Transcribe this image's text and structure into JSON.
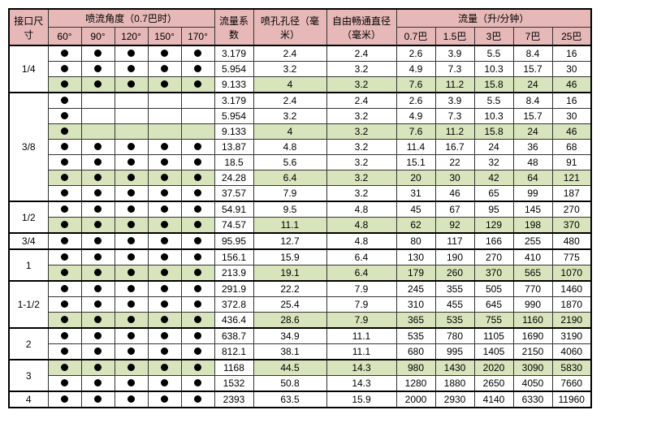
{
  "colors": {
    "header_bg": "#e6b8b7",
    "highlight_bg": "#d8e4bc",
    "border": "#333333",
    "dot": "#000000",
    "page_bg": "#ffffff"
  },
  "font": {
    "family": "Microsoft YaHei, Arial, sans-serif",
    "size_pt": 9
  },
  "headers": {
    "size": "接口尺寸",
    "angle_group": "喷流角度（0.7巴时）",
    "angles": [
      "60°",
      "90°",
      "120°",
      "150°",
      "170°"
    ],
    "coef": "流量系数",
    "orifice": "喷孔孔径（毫米）",
    "free": "自由畅通直径（毫米）",
    "flow_group": "流量（升/分钟）",
    "flows": [
      "0.7巴",
      "1.5巴",
      "3巴",
      "7巴",
      "25巴"
    ]
  },
  "rows": [
    {
      "size": "1/4",
      "span": 3,
      "dots": [
        1,
        1,
        1,
        1,
        1
      ],
      "hl": 0,
      "coef": "3.179",
      "dia": "2.4",
      "free": "2.4",
      "f": [
        "2.6",
        "3.9",
        "5.5",
        "8.4",
        "16"
      ]
    },
    {
      "dots": [
        1,
        1,
        1,
        1,
        1
      ],
      "hl": 0,
      "coef": "5.954",
      "dia": "3.2",
      "free": "3.2",
      "f": [
        "4.9",
        "7.3",
        "10.3",
        "15.7",
        "30"
      ]
    },
    {
      "dots": [
        1,
        1,
        1,
        1,
        1
      ],
      "hl": 1,
      "coef": "9.133",
      "dia": "4",
      "free": "3.2",
      "f": [
        "7.6",
        "11.2",
        "15.8",
        "24",
        "46"
      ]
    },
    {
      "size": "3/8",
      "span": 7,
      "dots": [
        1,
        0,
        0,
        0,
        0
      ],
      "hl": 0,
      "coef": "3.179",
      "dia": "2.4",
      "free": "2.4",
      "f": [
        "2.6",
        "3.9",
        "5.5",
        "8.4",
        "16"
      ]
    },
    {
      "dots": [
        1,
        0,
        0,
        0,
        0
      ],
      "hl": 0,
      "coef": "5.954",
      "dia": "3.2",
      "free": "3.2",
      "f": [
        "4.9",
        "7.3",
        "10.3",
        "15.7",
        "30"
      ]
    },
    {
      "dots": [
        1,
        0,
        0,
        0,
        0
      ],
      "hl": 1,
      "coef": "9.133",
      "dia": "4",
      "free": "3.2",
      "f": [
        "7.6",
        "11.2",
        "15.8",
        "24",
        "46"
      ]
    },
    {
      "dots": [
        1,
        1,
        1,
        1,
        1
      ],
      "hl": 0,
      "coef": "13.87",
      "dia": "4.8",
      "free": "3.2",
      "f": [
        "11.4",
        "16.7",
        "24",
        "36",
        "68"
      ]
    },
    {
      "dots": [
        1,
        1,
        1,
        1,
        1
      ],
      "hl": 0,
      "coef": "18.5",
      "dia": "5.6",
      "free": "3.2",
      "f": [
        "15.1",
        "22",
        "32",
        "48",
        "91"
      ]
    },
    {
      "dots": [
        1,
        1,
        1,
        1,
        1
      ],
      "hl": 1,
      "coef": "24.28",
      "dia": "6.4",
      "free": "3.2",
      "f": [
        "20",
        "30",
        "42",
        "64",
        "121"
      ]
    },
    {
      "dots": [
        1,
        1,
        1,
        1,
        1
      ],
      "hl": 0,
      "coef": "37.57",
      "dia": "7.9",
      "free": "3.2",
      "f": [
        "31",
        "46",
        "65",
        "99",
        "187"
      ]
    },
    {
      "size": "1/2",
      "span": 2,
      "dots": [
        1,
        1,
        1,
        1,
        1
      ],
      "hl": 0,
      "coef": "54.91",
      "dia": "9.5",
      "free": "4.8",
      "f": [
        "45",
        "67",
        "95",
        "145",
        "270"
      ]
    },
    {
      "dots": [
        1,
        1,
        1,
        1,
        1
      ],
      "hl": 1,
      "coef": "74.57",
      "dia": "11.1",
      "free": "4.8",
      "f": [
        "62",
        "92",
        "129",
        "198",
        "370"
      ]
    },
    {
      "size": "3/4",
      "span": 1,
      "dots": [
        1,
        1,
        1,
        1,
        1
      ],
      "hl": 0,
      "coef": "95.95",
      "dia": "12.7",
      "free": "4.8",
      "f": [
        "80",
        "117",
        "166",
        "255",
        "480"
      ]
    },
    {
      "size": "1",
      "span": 2,
      "dots": [
        1,
        1,
        1,
        1,
        1
      ],
      "hl": 0,
      "coef": "156.1",
      "dia": "15.9",
      "free": "6.4",
      "f": [
        "130",
        "190",
        "270",
        "410",
        "775"
      ]
    },
    {
      "dots": [
        1,
        1,
        1,
        1,
        1
      ],
      "hl": 1,
      "coef": "213.9",
      "dia": "19.1",
      "free": "6.4",
      "f": [
        "179",
        "260",
        "370",
        "565",
        "1070"
      ]
    },
    {
      "size": "1-1/2",
      "span": 3,
      "dots": [
        1,
        1,
        1,
        1,
        1
      ],
      "hl": 0,
      "coef": "291.9",
      "dia": "22.2",
      "free": "7.9",
      "f": [
        "245",
        "355",
        "505",
        "770",
        "1460"
      ]
    },
    {
      "dots": [
        1,
        1,
        1,
        1,
        1
      ],
      "hl": 0,
      "coef": "372.8",
      "dia": "25.4",
      "free": "7.9",
      "f": [
        "310",
        "455",
        "645",
        "990",
        "1870"
      ]
    },
    {
      "dots": [
        1,
        1,
        1,
        1,
        1
      ],
      "hl": 1,
      "coef": "436.4",
      "dia": "28.6",
      "free": "7.9",
      "f": [
        "365",
        "535",
        "755",
        "1160",
        "2190"
      ]
    },
    {
      "size": "2",
      "span": 2,
      "dots": [
        1,
        1,
        1,
        1,
        1
      ],
      "hl": 0,
      "coef": "638.7",
      "dia": "34.9",
      "free": "11.1",
      "f": [
        "535",
        "780",
        "1105",
        "1690",
        "3190"
      ]
    },
    {
      "dots": [
        1,
        1,
        1,
        1,
        1
      ],
      "hl": 0,
      "coef": "812.1",
      "dia": "38.1",
      "free": "11.1",
      "f": [
        "680",
        "995",
        "1405",
        "2150",
        "4060"
      ]
    },
    {
      "size": "3",
      "span": 2,
      "dots": [
        1,
        1,
        1,
        1,
        1
      ],
      "hl": 1,
      "coef": "1168",
      "dia": "44.5",
      "free": "14.3",
      "f": [
        "980",
        "1430",
        "2020",
        "3090",
        "5830"
      ]
    },
    {
      "dots": [
        1,
        1,
        1,
        1,
        1
      ],
      "hl": 0,
      "coef": "1532",
      "dia": "50.8",
      "free": "14.3",
      "f": [
        "1280",
        "1880",
        "2650",
        "4050",
        "7660"
      ]
    },
    {
      "size": "4",
      "span": 1,
      "dots": [
        1,
        1,
        1,
        1,
        1
      ],
      "hl": 0,
      "coef": "2393",
      "dia": "63.5",
      "free": "15.9",
      "f": [
        "2000",
        "2930",
        "4140",
        "6330",
        "11960"
      ]
    }
  ]
}
